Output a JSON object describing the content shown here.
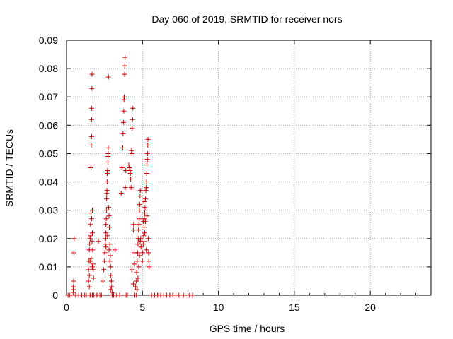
{
  "chart_data": {
    "type": "scatter",
    "title": "Day 060 of 2019, SRMTID for receiver nors",
    "xlabel": "GPS time / hours",
    "ylabel": "SRMTID / TECUs",
    "xlim": [
      0,
      24
    ],
    "ylim": [
      0,
      0.09
    ],
    "grid": true,
    "xticks": [
      0,
      5,
      10,
      15,
      20
    ],
    "xtick_labels": [
      "0",
      "5",
      "10",
      "15",
      "20"
    ],
    "yticks": [
      0,
      0.01,
      0.02,
      0.03,
      0.04,
      0.05,
      0.06,
      0.07,
      0.08,
      0.09
    ],
    "ytick_labels": [
      "0",
      "0.01",
      "0.02",
      "0.03",
      "0.04",
      "0.05",
      "0.06",
      "0.07",
      "0.08",
      "0.09"
    ],
    "marker": "+",
    "color": "#cc0000",
    "series": [
      {
        "name": "SRMTID",
        "points": [
          [
            0.1,
            0
          ],
          [
            0.2,
            0
          ],
          [
            0.3,
            0
          ],
          [
            0.45,
            0.001
          ],
          [
            0.45,
            0.002
          ],
          [
            0.45,
            0.003
          ],
          [
            0.47,
            0.005
          ],
          [
            0.48,
            0.015
          ],
          [
            0.5,
            0.02
          ],
          [
            0.6,
            0
          ],
          [
            0.8,
            0
          ],
          [
            1.0,
            0
          ],
          [
            1.2,
            0
          ],
          [
            1.3,
            0
          ],
          [
            1.45,
            0.005
          ],
          [
            1.45,
            0.009
          ],
          [
            1.48,
            0.012
          ],
          [
            1.5,
            0.016
          ],
          [
            1.52,
            0.018
          ],
          [
            1.55,
            0.02
          ],
          [
            1.58,
            0.025
          ],
          [
            1.6,
            0.029
          ],
          [
            1.6,
            0.045
          ],
          [
            1.62,
            0.013
          ],
          [
            1.63,
            0.053
          ],
          [
            1.65,
            0.056
          ],
          [
            1.65,
            0.062
          ],
          [
            1.66,
            0.066
          ],
          [
            1.67,
            0.073
          ],
          [
            1.68,
            0.078
          ],
          [
            1.7,
            0.03
          ],
          [
            1.7,
            0.022
          ],
          [
            1.72,
            0.016
          ],
          [
            1.74,
            0.011
          ],
          [
            1.76,
            0.009
          ],
          [
            1.78,
            0.006
          ],
          [
            1.6,
            0.021
          ],
          [
            1.55,
            0.012
          ],
          [
            1.5,
            0.007
          ],
          [
            1.65,
            0.027
          ],
          [
            1.68,
            0.019
          ],
          [
            1.7,
            0.01
          ],
          [
            1.5,
            0.003
          ],
          [
            1.55,
            0
          ],
          [
            1.6,
            0
          ],
          [
            1.7,
            0
          ],
          [
            1.8,
            0
          ],
          [
            2.0,
            0
          ],
          [
            2.1,
            0.019
          ],
          [
            2.2,
            0
          ],
          [
            2.3,
            0
          ],
          [
            2.4,
            0.005
          ],
          [
            2.45,
            0.009
          ],
          [
            2.5,
            0.012
          ],
          [
            2.52,
            0.015
          ],
          [
            2.55,
            0.018
          ],
          [
            2.58,
            0.02
          ],
          [
            2.6,
            0.022
          ],
          [
            2.6,
            0.025
          ],
          [
            2.62,
            0.027
          ],
          [
            2.63,
            0.03
          ],
          [
            2.64,
            0.034
          ],
          [
            2.65,
            0.036
          ],
          [
            2.66,
            0.037
          ],
          [
            2.67,
            0.04
          ],
          [
            2.68,
            0.043
          ],
          [
            2.7,
            0.044
          ],
          [
            2.72,
            0.047
          ],
          [
            2.73,
            0.049
          ],
          [
            2.74,
            0.05
          ],
          [
            2.75,
            0.052
          ],
          [
            2.76,
            0.077
          ],
          [
            2.78,
            0.031
          ],
          [
            2.8,
            0.028
          ],
          [
            2.82,
            0.024
          ],
          [
            2.85,
            0.018
          ],
          [
            2.88,
            0.014
          ],
          [
            2.9,
            0.01
          ],
          [
            2.92,
            0.007
          ],
          [
            2.95,
            0.005
          ],
          [
            2.97,
            0.003
          ],
          [
            3.0,
            0.001
          ],
          [
            2.8,
            0.016
          ],
          [
            2.85,
            0.012
          ],
          [
            2.7,
            0.021
          ],
          [
            2.6,
            0.017
          ],
          [
            2.9,
            0.002
          ],
          [
            3.0,
            0
          ],
          [
            3.1,
            0
          ],
          [
            3.2,
            0.016
          ],
          [
            3.3,
            0
          ],
          [
            3.5,
            0
          ],
          [
            3.6,
            0.036
          ],
          [
            3.65,
            0.045
          ],
          [
            3.7,
            0.052
          ],
          [
            3.72,
            0.057
          ],
          [
            3.75,
            0.061
          ],
          [
            3.77,
            0.065
          ],
          [
            3.78,
            0.069
          ],
          [
            3.8,
            0.07
          ],
          [
            3.82,
            0.078
          ],
          [
            3.83,
            0.081
          ],
          [
            3.85,
            0.084
          ],
          [
            3.87,
            0.038
          ],
          [
            3.9,
            0.044
          ],
          [
            3.92,
            0
          ],
          [
            4.0,
            0
          ],
          [
            4.1,
            0.046
          ],
          [
            4.15,
            0.045
          ],
          [
            4.18,
            0.044
          ],
          [
            4.2,
            0.043
          ],
          [
            4.22,
            0.041
          ],
          [
            4.25,
            0.038
          ],
          [
            4.28,
            0.051
          ],
          [
            4.3,
            0.05
          ],
          [
            4.32,
            0.059
          ],
          [
            4.35,
            0.062
          ],
          [
            4.37,
            0.066
          ],
          [
            4.4,
            0.023
          ],
          [
            4.42,
            0.025
          ],
          [
            4.45,
            0.015
          ],
          [
            4.47,
            0.011
          ],
          [
            4.3,
            0.009
          ],
          [
            4.4,
            0.004
          ],
          [
            4.5,
            0
          ],
          [
            4.55,
            0.003
          ],
          [
            4.6,
            0.005
          ],
          [
            4.62,
            0.008
          ],
          [
            4.65,
            0.012
          ],
          [
            4.68,
            0.015
          ],
          [
            4.7,
            0.018
          ],
          [
            4.72,
            0.02
          ],
          [
            4.74,
            0.023
          ],
          [
            4.76,
            0.025
          ],
          [
            4.78,
            0.027
          ],
          [
            4.8,
            0.03
          ],
          [
            4.82,
            0.032
          ],
          [
            4.84,
            0.035
          ],
          [
            4.86,
            0.037
          ],
          [
            4.88,
            0.02
          ],
          [
            4.9,
            0.017
          ],
          [
            4.7,
            0.006
          ],
          [
            4.75,
            0.01
          ],
          [
            4.8,
            0.014
          ],
          [
            4.85,
            0.019
          ],
          [
            4.65,
            0.002
          ],
          [
            4.6,
            0
          ],
          [
            5.0,
            0.012
          ],
          [
            5.02,
            0.015
          ],
          [
            5.05,
            0.018
          ],
          [
            5.08,
            0.021
          ],
          [
            5.1,
            0.024
          ],
          [
            5.12,
            0.027
          ],
          [
            5.15,
            0.029
          ],
          [
            5.17,
            0.031
          ],
          [
            5.2,
            0.034
          ],
          [
            5.22,
            0.037
          ],
          [
            5.25,
            0.038
          ],
          [
            5.27,
            0.04
          ],
          [
            5.28,
            0.043
          ],
          [
            5.3,
            0.046
          ],
          [
            5.32,
            0.048
          ],
          [
            5.33,
            0.05
          ],
          [
            5.35,
            0.053
          ],
          [
            5.36,
            0.055
          ],
          [
            5.38,
            0.02
          ],
          [
            5.4,
            0.015
          ],
          [
            5.42,
            0.012
          ],
          [
            5.44,
            0.01
          ],
          [
            5.1,
            0.019
          ],
          [
            5.2,
            0.026
          ],
          [
            5.3,
            0.028
          ],
          [
            5.25,
            0.016
          ],
          [
            5.15,
            0.022
          ],
          [
            5.05,
            0.026
          ],
          [
            5.1,
            0.033
          ],
          [
            5.6,
            0
          ],
          [
            5.8,
            0
          ],
          [
            6.0,
            0
          ],
          [
            6.2,
            0
          ],
          [
            6.4,
            0
          ],
          [
            6.6,
            0
          ],
          [
            6.8,
            0
          ],
          [
            7.0,
            0
          ],
          [
            7.2,
            0
          ],
          [
            7.4,
            0
          ],
          [
            7.7,
            0
          ],
          [
            8.1,
            0
          ],
          [
            8.3,
            0
          ]
        ]
      }
    ]
  }
}
